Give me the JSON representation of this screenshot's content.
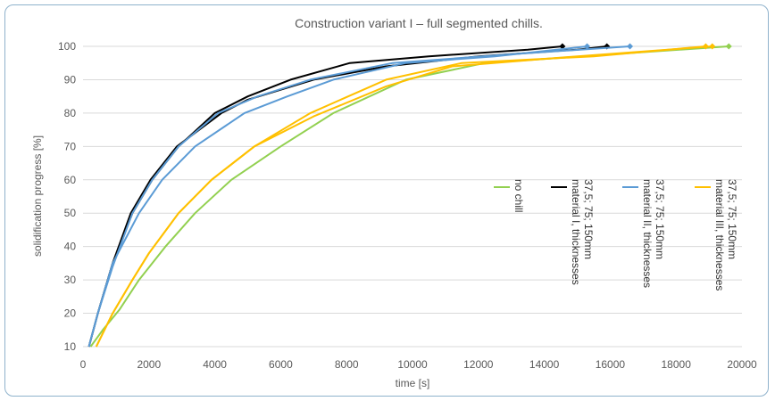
{
  "chart_data": {
    "type": "line",
    "title": "Construction variant I – full segmented chills.",
    "xlabel": "time [s]",
    "ylabel": "solidification progress [%]",
    "xlim": [
      0,
      20000
    ],
    "ylim": [
      10,
      100
    ],
    "x_ticks": [
      0,
      2000,
      4000,
      6000,
      8000,
      10000,
      12000,
      14000,
      16000,
      18000,
      20000
    ],
    "y_ticks": [
      10,
      20,
      30,
      40,
      50,
      60,
      70,
      80,
      90,
      100
    ],
    "grid": "horizontal",
    "legend_position": "right",
    "series": [
      {
        "name": "no chill",
        "color": "#92d050",
        "x": [
          230,
          600,
          1100,
          1700,
          2500,
          3400,
          4500,
          6000,
          7600,
          9800,
          12200,
          19600
        ],
        "y": [
          10,
          15,
          21,
          30,
          40,
          50,
          60,
          70,
          80,
          90,
          95,
          100
        ]
      },
      {
        "name": "material I, thicknesses 37,5; 75; 150mm",
        "color": "#000000",
        "x": [
          180,
          450,
          900,
          1500,
          2100,
          2900,
          4000,
          5000,
          6300,
          8100,
          10500,
          13500,
          14550
        ],
        "y": [
          10,
          20,
          35,
          50,
          60,
          70,
          80,
          85,
          90,
          95,
          97,
          99,
          100
        ]
      },
      {
        "name": "material I, thicknesses 37,5; 75; 150mm",
        "color": "#000000",
        "x": [
          180,
          450,
          900,
          1450,
          2050,
          2850,
          4200,
          5000,
          7000,
          9200,
          12000,
          15000,
          15900
        ],
        "y": [
          10,
          20,
          35,
          50,
          60,
          70,
          80,
          84,
          90,
          94,
          97,
          99,
          100
        ]
      },
      {
        "name": "material II, thicknesses 37,5; 75; 150mm",
        "color": "#5b9bd5",
        "x": [
          180,
          450,
          900,
          1700,
          2400,
          3400,
          4900,
          6200,
          7600,
          9800,
          12500,
          15300
        ],
        "y": [
          10,
          20,
          35,
          50,
          60,
          70,
          80,
          85,
          90,
          95,
          97,
          100
        ]
      },
      {
        "name": "material II, thicknesses 37,5; 75; 150mm",
        "color": "#5b9bd5",
        "x": [
          180,
          450,
          900,
          1500,
          2100,
          2900,
          4100,
          5300,
          6900,
          9400,
          12800,
          16600
        ],
        "y": [
          10,
          20,
          34,
          50,
          60,
          70,
          80,
          85,
          90,
          95,
          97.5,
          100
        ]
      },
      {
        "name": "material III, thicknesses 37,5; 75; 150mm",
        "color": "#ffc000",
        "x": [
          400,
          900,
          1500,
          2000,
          2900,
          3900,
          5200,
          6900,
          9200,
          11500,
          15500,
          18900
        ],
        "y": [
          10,
          20,
          30,
          38,
          50,
          60,
          70,
          80,
          90,
          95,
          97,
          100
        ]
      },
      {
        "name": "material III, thicknesses 37,5; 75; 150mm",
        "color": "#ffc000",
        "x": [
          400,
          900,
          1500,
          2000,
          2900,
          3900,
          5200,
          7000,
          9200,
          11200,
          15000,
          19100
        ],
        "y": [
          10,
          20,
          30,
          38,
          50,
          60,
          70,
          79,
          88,
          94,
          97,
          100
        ]
      }
    ],
    "legend": [
      {
        "label": "no chill",
        "color": "#92d050"
      },
      {
        "label": "material I, thicknesses 37,5; 75; 150mm",
        "color": "#000000"
      },
      {
        "label": "material II, thicknesses 37,5; 75; 150mm",
        "color": "#5b9bd5"
      },
      {
        "label": "material III, thicknesses 37,5; 75; 150mm",
        "color": "#ffc000"
      }
    ]
  }
}
